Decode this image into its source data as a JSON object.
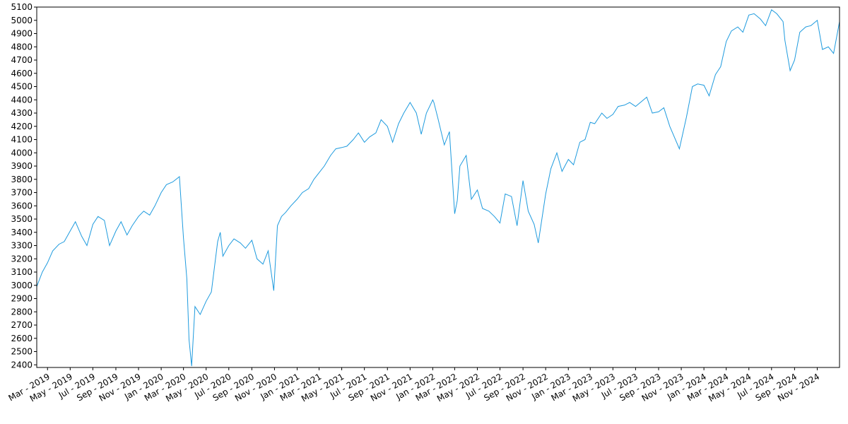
{
  "chart_data": {
    "type": "line",
    "title": "",
    "xlabel": "",
    "ylabel": "",
    "grid": false,
    "legend": "none",
    "line_color": "#1f9bde",
    "xlim": [
      "2019-01-31",
      "2024-12-31"
    ],
    "ylim": [
      2380,
      5100
    ],
    "yticks": [
      2400,
      2500,
      2600,
      2700,
      2800,
      2900,
      3000,
      3100,
      3200,
      3300,
      3400,
      3500,
      3600,
      3700,
      3800,
      3900,
      4000,
      4100,
      4200,
      4300,
      4400,
      4500,
      4600,
      4700,
      4800,
      4900,
      5000,
      5100
    ],
    "xticks": [
      {
        "date": "2019-03-01",
        "label": "Mar - 2019"
      },
      {
        "date": "2019-05-01",
        "label": "May - 2019"
      },
      {
        "date": "2019-07-01",
        "label": "Jul - 2019"
      },
      {
        "date": "2019-09-01",
        "label": "Sep - 2019"
      },
      {
        "date": "2019-11-01",
        "label": "Nov - 2019"
      },
      {
        "date": "2020-01-01",
        "label": "Jan - 2020"
      },
      {
        "date": "2020-03-01",
        "label": "Mar - 2020"
      },
      {
        "date": "2020-05-01",
        "label": "May - 2020"
      },
      {
        "date": "2020-07-01",
        "label": "Jul - 2020"
      },
      {
        "date": "2020-09-01",
        "label": "Sep - 2020"
      },
      {
        "date": "2020-11-01",
        "label": "Nov - 2020"
      },
      {
        "date": "2021-01-01",
        "label": "Jan - 2021"
      },
      {
        "date": "2021-03-01",
        "label": "Mar - 2021"
      },
      {
        "date": "2021-05-01",
        "label": "May - 2021"
      },
      {
        "date": "2021-07-01",
        "label": "Jul - 2021"
      },
      {
        "date": "2021-09-01",
        "label": "Sep - 2021"
      },
      {
        "date": "2021-11-01",
        "label": "Nov - 2021"
      },
      {
        "date": "2022-01-01",
        "label": "Jan - 2022"
      },
      {
        "date": "2022-03-01",
        "label": "Mar - 2022"
      },
      {
        "date": "2022-05-01",
        "label": "May - 2022"
      },
      {
        "date": "2022-07-01",
        "label": "Jul - 2022"
      },
      {
        "date": "2022-09-01",
        "label": "Sep - 2022"
      },
      {
        "date": "2022-11-01",
        "label": "Nov - 2022"
      },
      {
        "date": "2023-01-01",
        "label": "Jan - 2023"
      },
      {
        "date": "2023-03-01",
        "label": "Mar - 2023"
      },
      {
        "date": "2023-05-01",
        "label": "May - 2023"
      },
      {
        "date": "2023-07-01",
        "label": "Jul - 2023"
      },
      {
        "date": "2023-09-01",
        "label": "Sep - 2023"
      },
      {
        "date": "2023-11-01",
        "label": "Nov - 2023"
      },
      {
        "date": "2024-01-01",
        "label": "Jan - 2024"
      },
      {
        "date": "2024-03-01",
        "label": "Mar - 2024"
      },
      {
        "date": "2024-05-01",
        "label": "May - 2024"
      },
      {
        "date": "2024-07-01",
        "label": "Jul - 2024"
      },
      {
        "date": "2024-09-01",
        "label": "Sep - 2024"
      },
      {
        "date": "2024-11-01",
        "label": "Nov - 2024"
      }
    ],
    "series": [
      {
        "x": [
          "2019-01-31",
          "2019-02-15",
          "2019-03-01",
          "2019-03-15",
          "2019-04-01",
          "2019-04-15",
          "2019-05-01",
          "2019-05-15",
          "2019-06-01",
          "2019-06-15",
          "2019-07-01",
          "2019-07-15",
          "2019-08-01",
          "2019-08-15",
          "2019-09-01",
          "2019-09-15",
          "2019-10-01",
          "2019-10-15",
          "2019-11-01",
          "2019-11-15",
          "2019-12-01",
          "2019-12-15",
          "2020-01-01",
          "2020-01-15",
          "2020-02-01",
          "2020-02-19",
          "2020-03-01",
          "2020-03-10",
          "2020-03-16",
          "2020-03-23",
          "2020-04-01",
          "2020-04-15",
          "2020-05-01",
          "2020-05-15",
          "2020-06-01",
          "2020-06-08",
          "2020-06-15",
          "2020-07-01",
          "2020-07-15",
          "2020-08-01",
          "2020-08-15",
          "2020-09-01",
          "2020-09-15",
          "2020-10-01",
          "2020-10-15",
          "2020-10-30",
          "2020-11-09",
          "2020-11-20",
          "2020-12-01",
          "2020-12-15",
          "2021-01-01",
          "2021-01-15",
          "2021-02-01",
          "2021-02-15",
          "2021-03-01",
          "2021-03-15",
          "2021-04-01",
          "2021-04-15",
          "2021-05-01",
          "2021-05-15",
          "2021-06-01",
          "2021-06-15",
          "2021-07-01",
          "2021-07-15",
          "2021-08-01",
          "2021-08-15",
          "2021-09-01",
          "2021-09-15",
          "2021-10-01",
          "2021-10-15",
          "2021-11-01",
          "2021-11-18",
          "2021-12-01",
          "2021-12-15",
          "2022-01-01",
          "2022-01-04",
          "2022-01-15",
          "2022-02-01",
          "2022-02-15",
          "2022-03-01",
          "2022-03-08",
          "2022-03-15",
          "2022-04-01",
          "2022-04-15",
          "2022-05-01",
          "2022-05-15",
          "2022-06-01",
          "2022-06-16",
          "2022-07-01",
          "2022-07-15",
          "2022-08-01",
          "2022-08-16",
          "2022-09-01",
          "2022-09-15",
          "2022-10-01",
          "2022-10-12",
          "2022-11-01",
          "2022-11-15",
          "2022-12-01",
          "2022-12-15",
          "2023-01-01",
          "2023-01-15",
          "2023-02-01",
          "2023-02-15",
          "2023-03-01",
          "2023-03-13",
          "2023-04-01",
          "2023-04-15",
          "2023-05-01",
          "2023-05-15",
          "2023-06-01",
          "2023-06-15",
          "2023-07-01",
          "2023-07-31",
          "2023-08-15",
          "2023-09-01",
          "2023-09-15",
          "2023-10-01",
          "2023-10-27",
          "2023-11-15",
          "2023-12-01",
          "2023-12-15",
          "2024-01-01",
          "2024-01-15",
          "2024-02-01",
          "2024-02-15",
          "2024-03-01",
          "2024-03-15",
          "2024-04-01",
          "2024-04-15",
          "2024-05-01",
          "2024-05-15",
          "2024-06-01",
          "2024-06-15",
          "2024-07-01",
          "2024-07-15",
          "2024-08-01",
          "2024-08-06",
          "2024-08-20",
          "2024-09-01",
          "2024-09-15",
          "2024-10-01",
          "2024-10-15",
          "2024-11-01",
          "2024-11-15",
          "2024-12-01",
          "2024-12-15",
          "2024-12-31"
        ],
        "y": [
          2990,
          3100,
          3170,
          3260,
          3310,
          3330,
          3410,
          3480,
          3370,
          3300,
          3460,
          3520,
          3490,
          3300,
          3410,
          3480,
          3380,
          3450,
          3520,
          3560,
          3530,
          3600,
          3700,
          3760,
          3780,
          3820,
          3360,
          3050,
          2590,
          2390,
          2840,
          2780,
          2880,
          2950,
          3330,
          3400,
          3220,
          3300,
          3350,
          3320,
          3280,
          3340,
          3200,
          3160,
          3260,
          2960,
          3450,
          3520,
          3550,
          3600,
          3650,
          3700,
          3730,
          3800,
          3850,
          3900,
          3980,
          4030,
          4040,
          4050,
          4100,
          4150,
          4080,
          4120,
          4150,
          4250,
          4200,
          4080,
          4220,
          4300,
          4380,
          4300,
          4140,
          4300,
          4400,
          4380,
          4260,
          4060,
          4160,
          3540,
          3640,
          3900,
          3980,
          3650,
          3720,
          3580,
          3560,
          3520,
          3470,
          3690,
          3670,
          3450,
          3790,
          3560,
          3460,
          3320,
          3690,
          3880,
          4000,
          3860,
          3950,
          3910,
          4080,
          4100,
          4230,
          4220,
          4300,
          4260,
          4290,
          4350,
          4360,
          4380,
          4350,
          4420,
          4300,
          4310,
          4340,
          4200,
          4030,
          4270,
          4500,
          4520,
          4510,
          4430,
          4590,
          4650,
          4840,
          4920,
          4950,
          4910,
          5040,
          5050,
          5010,
          4960,
          5080,
          5050,
          4990,
          4850,
          4620,
          4700,
          4910,
          4950,
          4960,
          5000,
          4780,
          4800,
          4750,
          4990
        ]
      }
    ]
  }
}
